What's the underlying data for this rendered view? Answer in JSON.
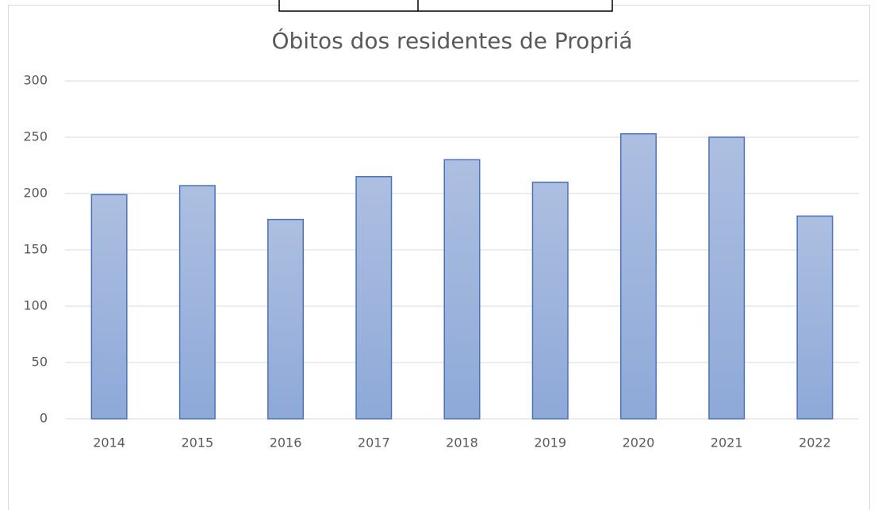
{
  "chart_data": {
    "type": "bar",
    "title": "Óbitos dos residentes de Propriá",
    "categories": [
      "2014",
      "2015",
      "2016",
      "2017",
      "2018",
      "2019",
      "2020",
      "2021",
      "2022"
    ],
    "values": [
      199,
      207,
      177,
      215,
      230,
      210,
      253,
      250,
      180
    ],
    "color": "#4a72b8",
    "ylim": [
      0,
      300
    ],
    "yticks": [
      0,
      50,
      100,
      150,
      200,
      250,
      300
    ],
    "grid": true
  }
}
